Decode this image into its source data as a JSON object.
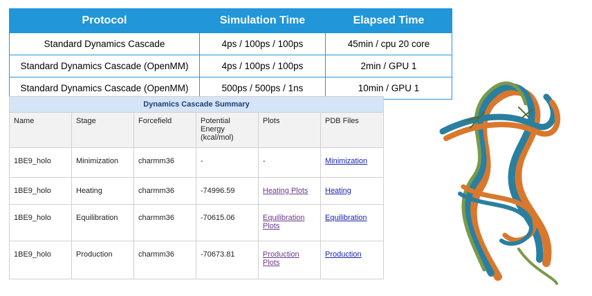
{
  "top_table": {
    "headers": [
      "Protocol",
      "Simulation Time",
      "Elapsed Time"
    ],
    "rows": [
      [
        "Standard Dynamics Cascade",
        "4ps / 100ps / 100ps",
        "45min / cpu 20 core"
      ],
      [
        "Standard Dynamics Cascade (OpenMM)",
        "4ps / 100ps / 100ps",
        "2min / GPU 1"
      ],
      [
        "Standard Dynamics Cascade (OpenMM)",
        "500ps / 500ps / 1ns",
        "10min / GPU 1"
      ]
    ]
  },
  "summary_table": {
    "title": "Dynamics Cascade Summary",
    "headers": [
      "Name",
      "Stage",
      "Forcefield",
      "Potential Energy (kcal/mol)",
      "Plots",
      "PDB Files"
    ],
    "rows": [
      [
        "1BE9_holo",
        "Minimization",
        "charmm36",
        "-",
        "-",
        "Minimization"
      ],
      [
        "1BE9_holo",
        "Heating",
        "charmm36",
        "-74996.59",
        "Heating Plots",
        "Heating"
      ],
      [
        "1BE9_holo",
        "Equilibration",
        "charmm36",
        "-70615.06",
        "Equilibration Plots",
        "Equilibration"
      ],
      [
        "1BE9_holo",
        "Production",
        "charmm36",
        "-70673.81",
        "Production Plots",
        "Production"
      ]
    ]
  }
}
